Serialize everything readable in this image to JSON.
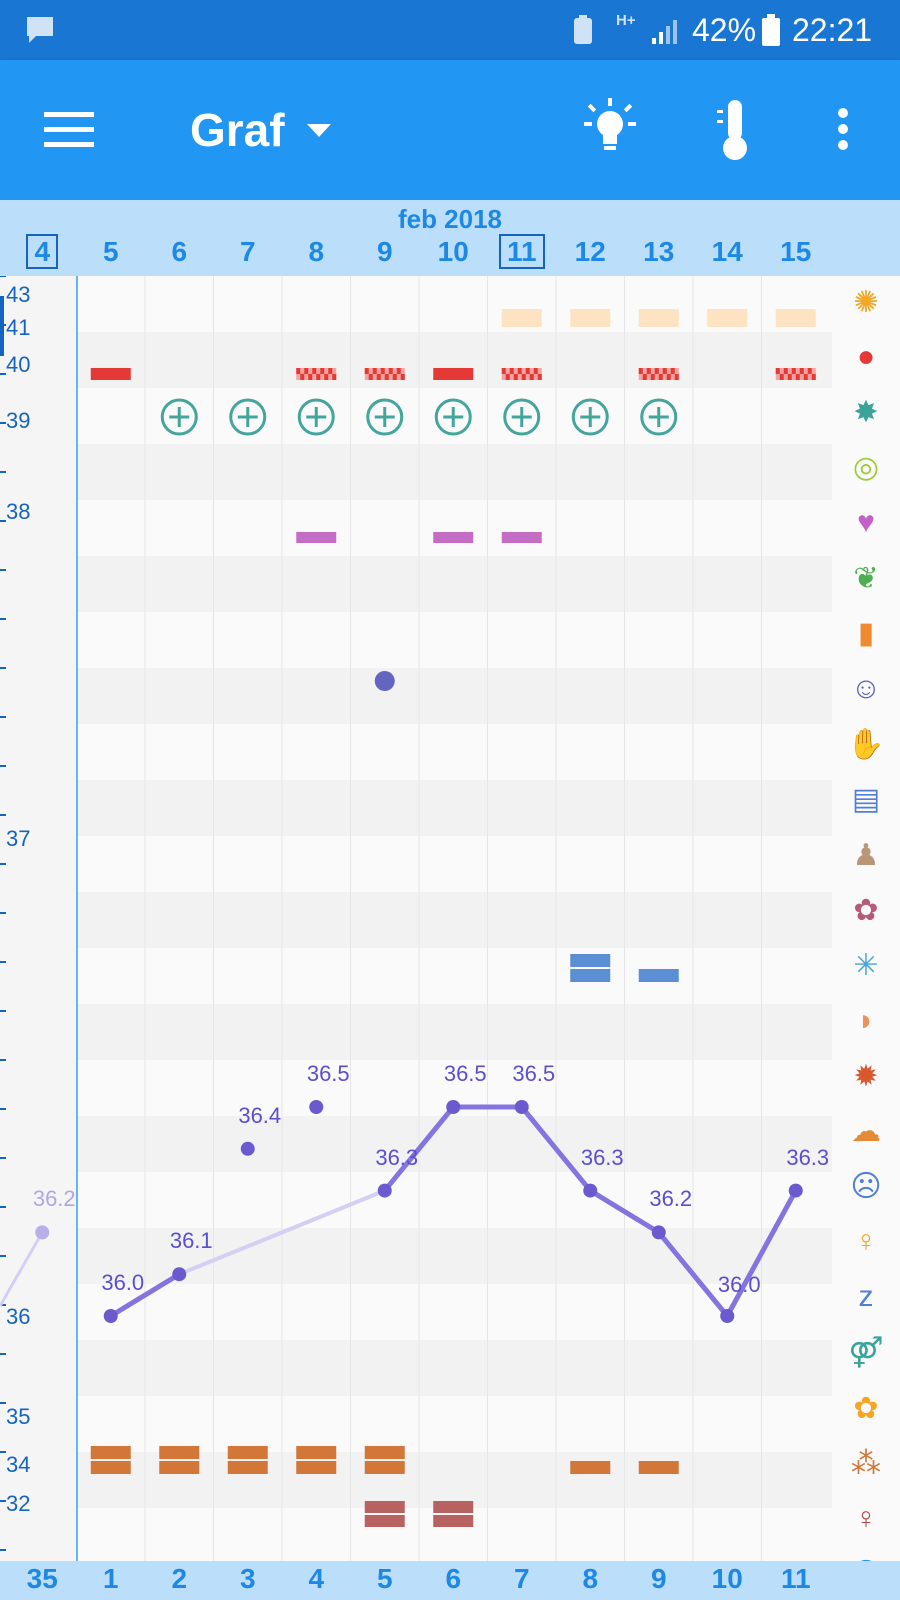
{
  "status_bar": {
    "notification_icon": "message-icon",
    "network_type": "H+",
    "battery_percent": "42%",
    "time": "22:21"
  },
  "app_bar": {
    "title": "Graf",
    "menu_icon": "hamburger-menu-icon",
    "bulb_icon": "lightbulb-icon",
    "thermo_icon": "thermometer-icon",
    "more_icon": "more-vertical-icon"
  },
  "date_header": {
    "month": "feb 2018",
    "days": [
      "4",
      "5",
      "6",
      "7",
      "8",
      "9",
      "10",
      "11",
      "12",
      "13",
      "14",
      "15"
    ],
    "boxed_days": [
      "4",
      "11"
    ]
  },
  "bottom_bar": {
    "cycle_days": [
      "35",
      "1",
      "2",
      "3",
      "4",
      "5",
      "6",
      "7",
      "8",
      "9",
      "10",
      "11"
    ]
  },
  "y_axis": {
    "labels": [
      "43",
      "41",
      "40",
      "39",
      "38",
      "37",
      "36",
      "35",
      "34",
      "32"
    ]
  },
  "chart_data": {
    "type": "line",
    "series": [
      {
        "days": [
          "4",
          "5",
          "6",
          "7",
          "8",
          "9",
          "10",
          "11",
          "12",
          "13",
          "14",
          "15"
        ],
        "values": [
          36.2,
          36.0,
          36.1,
          36.4,
          36.5,
          36.3,
          36.5,
          36.5,
          36.3,
          36.2,
          36.0,
          36.3
        ],
        "labels": [
          "36.2",
          "36.0",
          "36.1",
          "36.4",
          "36.5",
          "36.3",
          "36.5",
          "36.5",
          "36.3",
          "36.2",
          "36.0",
          "36.3"
        ]
      }
    ]
  },
  "right_icons": [
    "sun-flower-icon",
    "blood-drop-icon",
    "splash-icon",
    "cervix-rings-icon",
    "heart-icon",
    "leaf-icon",
    "pill-bottle-icon",
    "smiley-icon",
    "pain-head-icon",
    "document-icon",
    "pregnancy-test-icon",
    "flower-check-icon",
    "spark-burst-icon",
    "breast-icon",
    "drop-burst-icon",
    "ovary-icon",
    "sick-face-icon",
    "woman-icon",
    "sleep-zzz-icon",
    "couple-icon",
    "flower-alert-icon",
    "dots-cluster-icon",
    "woman-standing-icon",
    "cycle-ring-icon"
  ],
  "colors": {
    "status_bar": "#1976d2",
    "app_bar": "#2196f3",
    "header_bg": "#bbdefb",
    "temp_line": "#8474e0",
    "temp_dot": "#6a5acd",
    "accent_text": "#1e88e5"
  }
}
